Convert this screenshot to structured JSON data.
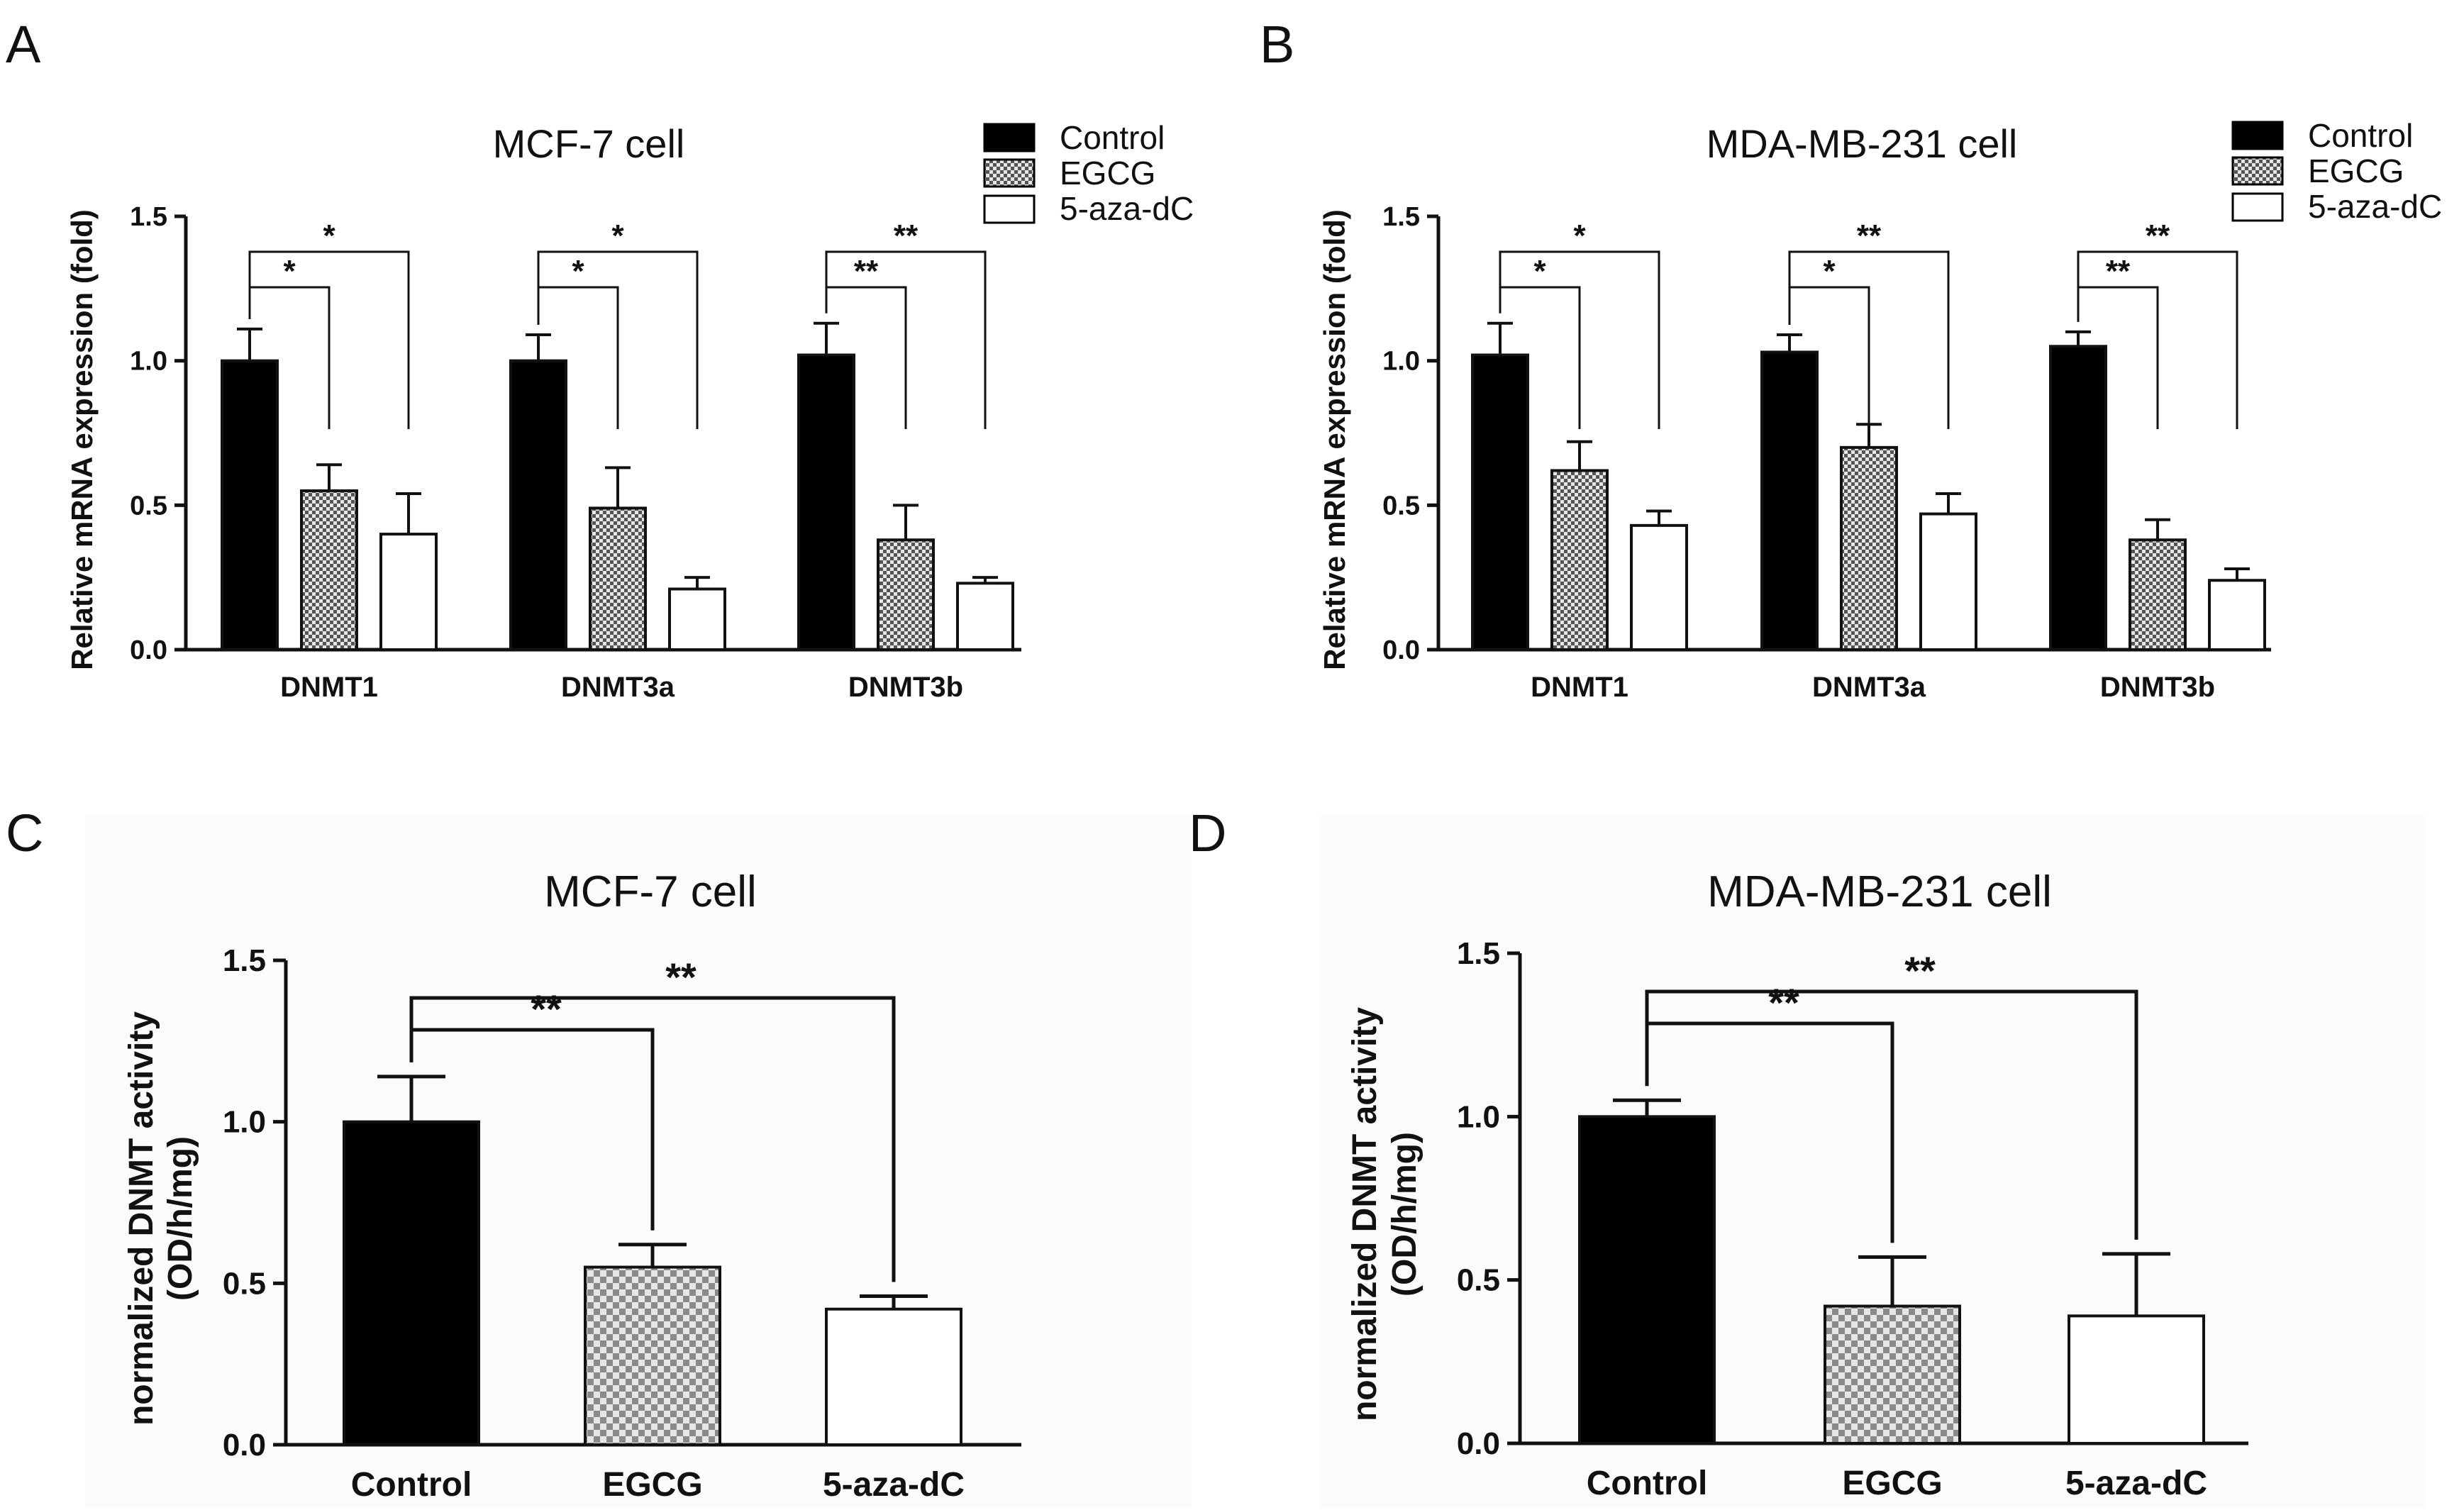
{
  "chart_data": [
    {
      "panel": "A",
      "type": "bar",
      "title": "MCF-7 cell",
      "ylabel": "Relative mRNA expression (fold)",
      "xlabel": "",
      "ylim": [
        0,
        1.5
      ],
      "yticks": [
        "0.0",
        "0.5",
        "1.0",
        "1.5"
      ],
      "categories": [
        "DNMT1",
        "DNMT3a",
        "DNMT3b"
      ],
      "legend": [
        "Control",
        "EGCG",
        "5-aza-dC"
      ],
      "series": [
        {
          "name": "Control",
          "values": [
            1.0,
            1.0,
            1.02
          ],
          "errors": [
            0.11,
            0.09,
            0.11
          ]
        },
        {
          "name": "EGCG",
          "values": [
            0.55,
            0.49,
            0.38
          ],
          "errors": [
            0.09,
            0.14,
            0.12
          ]
        },
        {
          "name": "5-aza-dC",
          "values": [
            0.4,
            0.21,
            0.23
          ],
          "errors": [
            0.14,
            0.04,
            0.02
          ]
        }
      ],
      "significance": [
        {
          "category": "DNMT1",
          "near": "*",
          "far": "*"
        },
        {
          "category": "DNMT3a",
          "near": "*",
          "far": "*"
        },
        {
          "category": "DNMT3b",
          "near": "**",
          "far": "**"
        }
      ]
    },
    {
      "panel": "B",
      "type": "bar",
      "title": "MDA-MB-231 cell",
      "ylabel": "Relative mRNA expression (fold)",
      "xlabel": "",
      "ylim": [
        0,
        1.5
      ],
      "yticks": [
        "0.0",
        "0.5",
        "1.0",
        "1.5"
      ],
      "categories": [
        "DNMT1",
        "DNMT3a",
        "DNMT3b"
      ],
      "legend": [
        "Control",
        "EGCG",
        "5-aza-dC"
      ],
      "series": [
        {
          "name": "Control",
          "values": [
            1.02,
            1.03,
            1.05
          ],
          "errors": [
            0.11,
            0.06,
            0.05
          ]
        },
        {
          "name": "EGCG",
          "values": [
            0.62,
            0.7,
            0.38
          ],
          "errors": [
            0.1,
            0.08,
            0.07
          ]
        },
        {
          "name": "5-aza-dC",
          "values": [
            0.43,
            0.47,
            0.24
          ],
          "errors": [
            0.05,
            0.07,
            0.04
          ]
        }
      ],
      "significance": [
        {
          "category": "DNMT1",
          "near": "*",
          "far": "*"
        },
        {
          "category": "DNMT3a",
          "near": "*",
          "far": "**"
        },
        {
          "category": "DNMT3b",
          "near": "**",
          "far": "**"
        }
      ]
    },
    {
      "panel": "C",
      "type": "bar",
      "title": "MCF-7 cell",
      "ylabel": "normalized DNMT activity",
      "ylabel2": "(OD/h/mg)",
      "xlabel": "",
      "ylim": [
        0,
        1.5
      ],
      "yticks": [
        "0.0",
        "0.5",
        "1.0",
        "1.5"
      ],
      "categories": [
        "Control",
        "EGCG",
        "5-aza-dC"
      ],
      "values": [
        1.0,
        0.55,
        0.42
      ],
      "errors": [
        0.14,
        0.07,
        0.04
      ],
      "significance": {
        "near": "**",
        "far": "**"
      }
    },
    {
      "panel": "D",
      "type": "bar",
      "title": "MDA-MB-231 cell",
      "ylabel": "normalized DNMT activity",
      "ylabel2": "(OD/h/mg)",
      "xlabel": "",
      "ylim": [
        0,
        1.5
      ],
      "yticks": [
        "0.0",
        "0.5",
        "1.0",
        "1.5"
      ],
      "categories": [
        "Control",
        "EGCG",
        "5-aza-dC"
      ],
      "values": [
        1.0,
        0.42,
        0.39
      ],
      "errors": [
        0.05,
        0.15,
        0.19
      ],
      "significance": {
        "near": "**",
        "far": "**"
      }
    }
  ],
  "colors": {
    "control": "#000000",
    "egcg_checker_dark": "#555555",
    "egcg_checker_light": "#e6e6e6",
    "aza": "#ffffff",
    "panel_bg_cd": "#fbfbfb"
  }
}
